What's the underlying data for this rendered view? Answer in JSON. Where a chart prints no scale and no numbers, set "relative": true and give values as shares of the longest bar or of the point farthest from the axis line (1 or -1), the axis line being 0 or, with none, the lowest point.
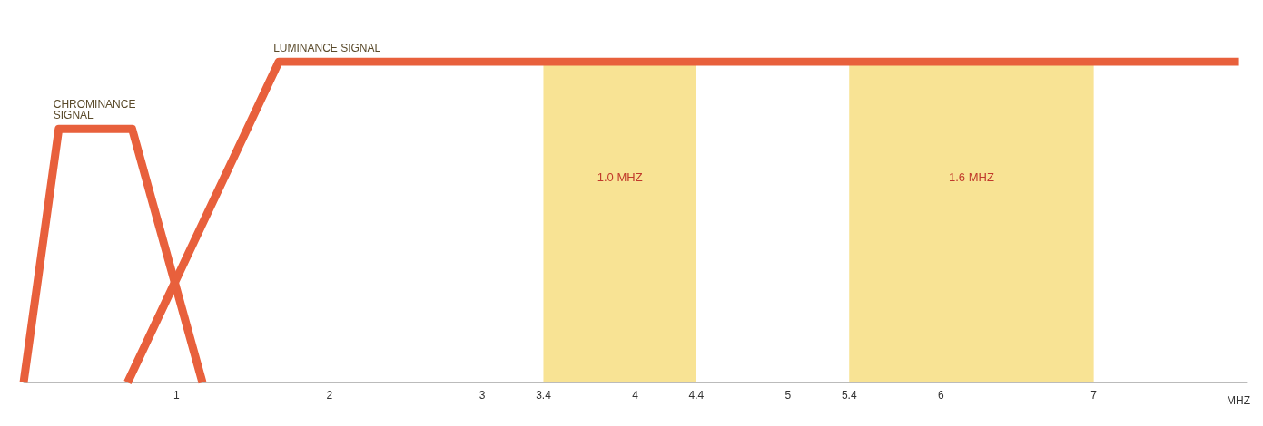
{
  "chart_data": {
    "type": "line",
    "relative": true,
    "xlabel": "MHZ",
    "xlim": [
      0,
      8
    ],
    "xticks": [
      1,
      2,
      3,
      3.4,
      4,
      4.4,
      5,
      5.4,
      6,
      7
    ],
    "marker": "none",
    "line_style": "solid",
    "grid": false,
    "legend": false,
    "series": [
      {
        "name": "CHROMINANCE SIGNAL",
        "color": "#e8603c",
        "x": [
          0,
          0.23,
          0.71,
          1.17
        ],
        "values": [
          0,
          0.79,
          0.79,
          0
        ]
      },
      {
        "name": "LUMINANCE SIGNAL",
        "color": "#e8603c",
        "x": [
          0.68,
          1.67,
          7.95
        ],
        "values": [
          0,
          1,
          1
        ]
      }
    ],
    "bands": [
      {
        "axis": "x",
        "from": 3.4,
        "to": 4.4,
        "label": "1.0 MHZ",
        "color": "#f8e394"
      },
      {
        "axis": "x",
        "from": 5.4,
        "to": 7,
        "label": "1.6 MHZ",
        "color": "#f8e394"
      }
    ]
  }
}
